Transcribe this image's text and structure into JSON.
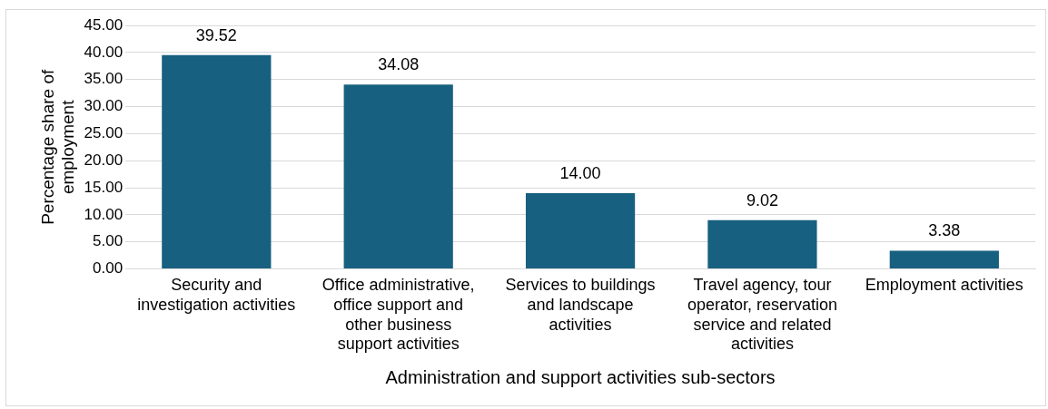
{
  "chart_data": {
    "type": "bar",
    "xlabel": "Administration and support activities sub-sectors",
    "ylabel": "Percentage share of employment",
    "categories": [
      "Security and investigation activities",
      "Office administrative, office support and other business support activities",
      "Services to buildings and landscape activities",
      "Travel agency, tour operator, reservation service and related activities",
      "Employment activities"
    ],
    "values": [
      39.52,
      34.08,
      14.0,
      9.02,
      3.38
    ],
    "value_labels": [
      "39.52",
      "34.08",
      "14.00",
      "9.02",
      "3.38"
    ],
    "color": "#17607f",
    "ylim": [
      0,
      45
    ],
    "yticks": [
      {
        "value": 0,
        "label": "0.00"
      },
      {
        "value": 5,
        "label": "5.00"
      },
      {
        "value": 10,
        "label": "10.00"
      },
      {
        "value": 15,
        "label": "15.00"
      },
      {
        "value": 20,
        "label": "20.00"
      },
      {
        "value": 25,
        "label": "25.00"
      },
      {
        "value": 30,
        "label": "30.00"
      },
      {
        "value": 35,
        "label": "35.00"
      },
      {
        "value": 40,
        "label": "40.00"
      },
      {
        "value": 45,
        "label": "45.00"
      }
    ],
    "grid": "y",
    "legend": false
  }
}
